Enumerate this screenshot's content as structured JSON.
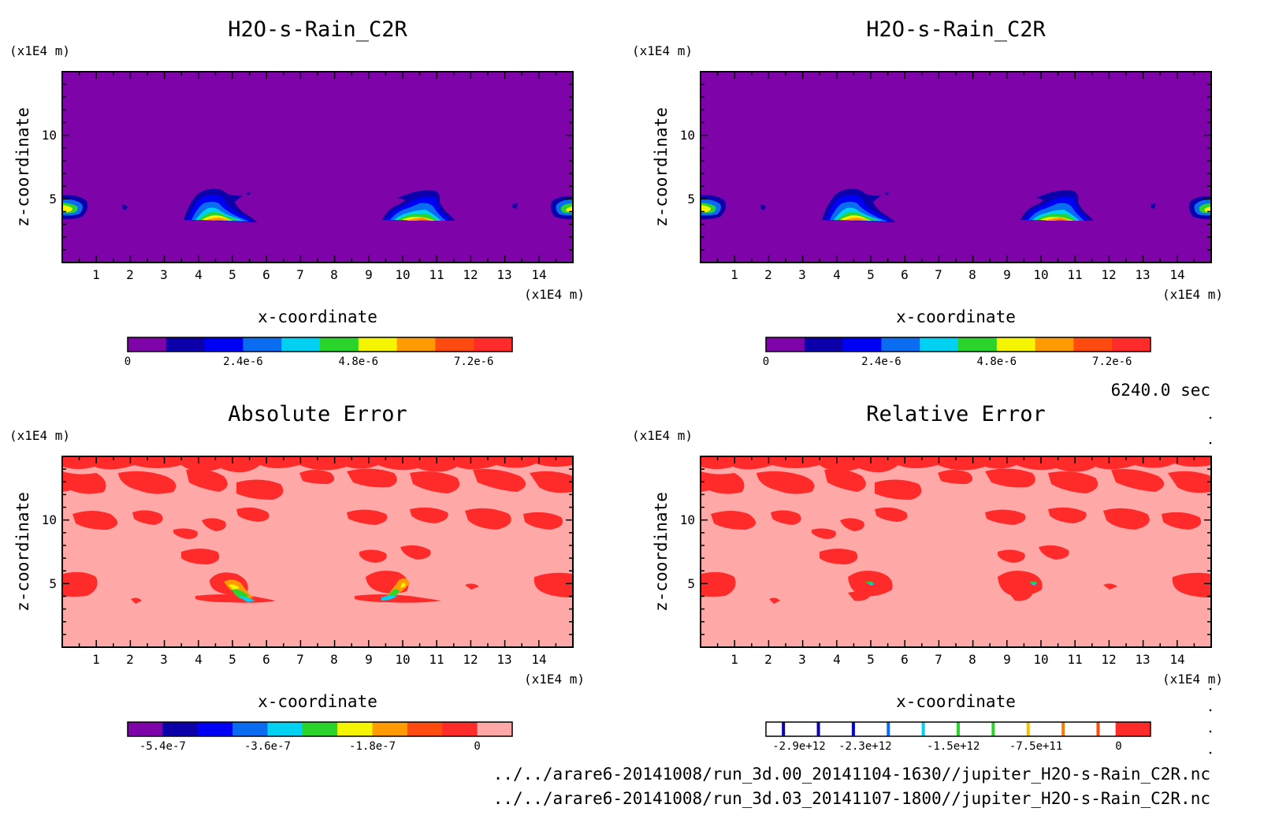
{
  "panels": [
    {
      "title": "H2O-s-Rain_C2R",
      "z_unit": "(x1E4 m)",
      "x_unit": "(x1E4 m)",
      "xlabel": "x-coordinate",
      "ylabel": "z-coordinate",
      "x_ticks": [
        "1",
        "2",
        "3",
        "4",
        "5",
        "6",
        "7",
        "8",
        "9",
        "10",
        "11",
        "12",
        "13",
        "14"
      ],
      "y_ticks": [
        "5",
        "10"
      ],
      "colorbar": {
        "colors": [
          "#7e03a8",
          "#0b00a9",
          "#0000f5",
          "#0a6cf0",
          "#00d0f2",
          "#2ad42a",
          "#f6f500",
          "#ff9a00",
          "#ff4a10",
          "#ff2b2b"
        ],
        "tick_labels": [
          "0",
          "2.4e-6",
          "4.8e-6",
          "7.2e-6"
        ],
        "tick_values": [
          0,
          2.4e-06,
          4.8e-06,
          7.2e-06
        ]
      }
    },
    {
      "title": "H2O-s-Rain_C2R",
      "z_unit": "(x1E4 m)",
      "x_unit": "(x1E4 m)",
      "xlabel": "x-coordinate",
      "ylabel": "z-coordinate",
      "x_ticks": [
        "1",
        "2",
        "3",
        "4",
        "5",
        "6",
        "7",
        "8",
        "9",
        "10",
        "11",
        "12",
        "13",
        "14"
      ],
      "y_ticks": [
        "5",
        "10"
      ],
      "colorbar": {
        "colors": [
          "#7e03a8",
          "#0b00a9",
          "#0000f5",
          "#0a6cf0",
          "#00d0f2",
          "#2ad42a",
          "#f6f500",
          "#ff9a00",
          "#ff4a10",
          "#ff2b2b"
        ],
        "tick_labels": [
          "0",
          "2.4e-6",
          "4.8e-6",
          "7.2e-6"
        ],
        "tick_values": [
          0,
          2.4e-06,
          4.8e-06,
          7.2e-06
        ]
      }
    },
    {
      "title": "Absolute Error",
      "z_unit": "(x1E4 m)",
      "x_unit": "(x1E4 m)",
      "xlabel": "x-coordinate",
      "ylabel": "z-coordinate",
      "x_ticks": [
        "1",
        "2",
        "3",
        "4",
        "5",
        "6",
        "7",
        "8",
        "9",
        "10",
        "11",
        "12",
        "13",
        "14"
      ],
      "y_ticks": [
        "5",
        "10"
      ],
      "colorbar": {
        "colors": [
          "#7e03a8",
          "#0b00a9",
          "#0000f5",
          "#0a6cf0",
          "#00d0f2",
          "#2ad42a",
          "#f6f500",
          "#ff9a00",
          "#ff4a10",
          "#ff2b2b",
          "#ffa8a8"
        ],
        "tick_labels": [
          "-5.4e-7",
          "-3.6e-7",
          "-1.8e-7",
          "0"
        ],
        "tick_values": [
          -5.4e-07,
          -3.6e-07,
          -1.8e-07,
          0
        ]
      }
    },
    {
      "title": "Relative Error",
      "z_unit": "(x1E4 m)",
      "x_unit": "(x1E4 m)",
      "xlabel": "x-coordinate",
      "ylabel": "z-coordinate",
      "x_ticks": [
        "1",
        "2",
        "3",
        "4",
        "5",
        "6",
        "7",
        "8",
        "9",
        "10",
        "11",
        "12",
        "13",
        "14"
      ],
      "y_ticks": [
        "5",
        "10"
      ],
      "colorbar": {
        "colors": [
          "#ffffff",
          "#ffffff",
          "#ffffff",
          "#ffffff",
          "#ffffff",
          "#ffffff",
          "#ffffff",
          "#ffffff",
          "#ffffff",
          "#ffffff",
          "#ff2b2b"
        ],
        "line_colors": [
          "#0b00a9",
          "#0b00a9",
          "#0000f5",
          "#0a6cf0",
          "#00d0f2",
          "#2ad42a",
          "#2ad42a",
          "#f6c000",
          "#ff7a00",
          "#ff4a10"
        ],
        "tick_labels": [
          "-2.9e+12",
          "-2.3e+12",
          "-1.5e+12",
          "-7.5e+11",
          "0"
        ],
        "tick_values": [
          -2900000000000.0,
          -2300000000000.0,
          -1500000000000.0,
          -750000000000.0,
          0
        ]
      }
    }
  ],
  "time_label": "6240.0 sec",
  "footer_lines": [
    "../../arare6-20141008/run_3d.00_20141104-1630//jupiter_H2O-s-Rain_C2R.nc",
    "../../arare6-20141008/run_3d.03_20141107-1800//jupiter_H2O-s-Rain_C2R.nc"
  ],
  "chart_data": [
    {
      "type": "heatmap",
      "title": "H2O-s-Rain_C2R",
      "xlabel": "x-coordinate",
      "ylabel": "z-coordinate",
      "x_unit": "(x1E4 m)",
      "z_unit": "(x1E4 m)",
      "xlim": [
        0,
        15
      ],
      "ylim": [
        0,
        15
      ],
      "levels": [
        0,
        8e-07,
        1.6e-06,
        2.4e-06,
        3.2e-06,
        4e-06,
        4.8e-06,
        5.6e-06,
        6.4e-06,
        7.2e-06,
        8e-06
      ],
      "background": "#7e03a8",
      "features": [
        {
          "name": "left edge cloud",
          "x": 0.3,
          "z": 4.4
        },
        {
          "name": "cloud 1",
          "x": 4.8,
          "z": 3.9
        },
        {
          "name": "cloud 2",
          "x": 10.4,
          "z": 3.9
        },
        {
          "name": "right edge cloud",
          "x": 14.7,
          "z": 4.4
        }
      ]
    },
    {
      "type": "heatmap",
      "title": "H2O-s-Rain_C2R",
      "xlabel": "x-coordinate",
      "ylabel": "z-coordinate",
      "x_unit": "(x1E4 m)",
      "z_unit": "(x1E4 m)",
      "xlim": [
        0,
        15
      ],
      "ylim": [
        0,
        15
      ],
      "levels": [
        0,
        8e-07,
        1.6e-06,
        2.4e-06,
        3.2e-06,
        4e-06,
        4.8e-06,
        5.6e-06,
        6.4e-06,
        7.2e-06,
        8e-06
      ],
      "background": "#7e03a8",
      "features": [
        {
          "name": "left edge cloud",
          "x": 0.3,
          "z": 4.4
        },
        {
          "name": "cloud 1",
          "x": 4.8,
          "z": 3.9
        },
        {
          "name": "cloud 2",
          "x": 10.4,
          "z": 3.9
        },
        {
          "name": "right edge cloud",
          "x": 14.7,
          "z": 4.4
        }
      ]
    },
    {
      "type": "heatmap",
      "title": "Absolute Error",
      "xlabel": "x-coordinate",
      "ylabel": "z-coordinate",
      "x_unit": "(x1E4 m)",
      "z_unit": "(x1E4 m)",
      "xlim": [
        0,
        15
      ],
      "ylim": [
        0,
        15
      ],
      "levels": [
        -6e-07,
        -5.4e-07,
        -4.8e-07,
        -4.2e-07,
        -3.6e-07,
        -3e-07,
        -2.4e-07,
        -1.8e-07,
        -1.2e-07,
        -6e-08,
        0,
        6e-08
      ],
      "background": "#ffa8a8"
    },
    {
      "type": "heatmap",
      "title": "Relative Error",
      "xlabel": "x-coordinate",
      "ylabel": "z-coordinate",
      "x_unit": "(x1E4 m)",
      "z_unit": "(x1E4 m)",
      "xlim": [
        0,
        15
      ],
      "ylim": [
        0,
        15
      ],
      "levels": [
        -2900000000000.0,
        -2300000000000.0,
        -1500000000000.0,
        -750000000000.0,
        0
      ],
      "background": "#ffa8a8"
    }
  ]
}
